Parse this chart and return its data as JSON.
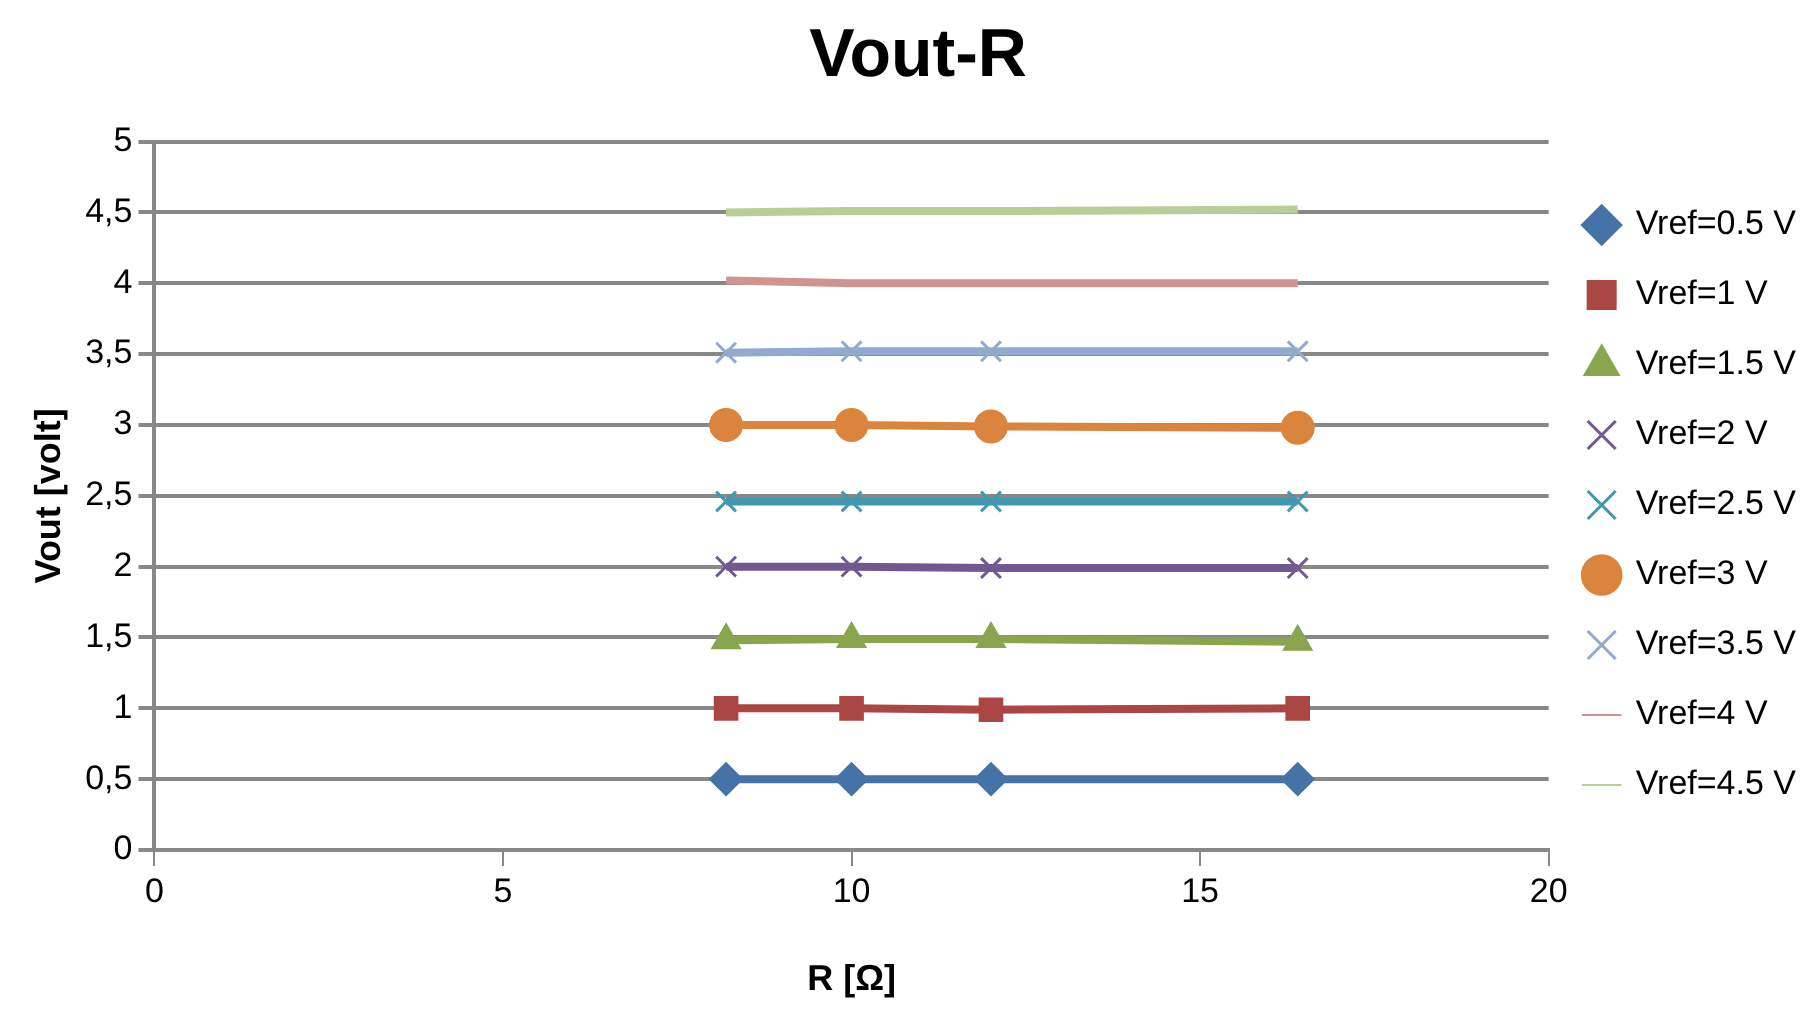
{
  "chart_data": {
    "type": "line",
    "title": "Vout-R",
    "xlabel": "R [Ω]",
    "ylabel": "Vout [volt]",
    "x": [
      8.2,
      10,
      12,
      16.4
    ],
    "xlim": [
      0,
      20
    ],
    "xticks": [
      0,
      5,
      10,
      15,
      20
    ],
    "ylim": [
      0,
      5
    ],
    "yticks": [
      0,
      {
        "value": 0.5,
        "label": "0,5"
      },
      1,
      {
        "value": 1.5,
        "label": "1,5"
      },
      2,
      {
        "value": 2.5,
        "label": "2,5"
      },
      3,
      {
        "value": 3.5,
        "label": "3,5"
      },
      4,
      {
        "value": 4.5,
        "label": "4,5"
      },
      5
    ],
    "grid": "y",
    "legend": "right",
    "series": [
      {
        "name": "Vref=0.5 V",
        "color": "#4572a7",
        "marker": "diamond",
        "values": [
          0.5,
          0.5,
          0.5,
          0.5
        ]
      },
      {
        "name": "Vref=1 V",
        "color": "#aa4643",
        "marker": "square",
        "values": [
          1,
          1,
          0.99,
          1
        ]
      },
      {
        "name": "Vref=1.5 V",
        "color": "#89a54e",
        "marker": "triangle",
        "values": [
          1.48,
          1.49,
          1.49,
          1.47
        ]
      },
      {
        "name": "Vref=2 V",
        "color": "#71588f",
        "marker": "cross",
        "values": [
          2,
          2,
          1.99,
          1.99
        ]
      },
      {
        "name": "Vref=2.5 V",
        "color": "#4198af",
        "marker": "cross",
        "values": [
          2.46,
          2.46,
          2.46,
          2.46
        ]
      },
      {
        "name": "Vref=3 V",
        "color": "#db843d",
        "marker": "circle",
        "values": [
          3,
          3,
          2.99,
          2.98
        ]
      },
      {
        "name": "Vref=3.5 V",
        "color": "#93a9cf",
        "marker": "cross",
        "values": [
          3.51,
          3.52,
          3.52,
          3.52
        ]
      },
      {
        "name": "Vref=4 V",
        "color": "#d19392",
        "marker": "none",
        "values": [
          4.02,
          4,
          4,
          4
        ]
      },
      {
        "name": "Vref=4.5 V",
        "color": "#b9cd96",
        "marker": "none",
        "values": [
          4.5,
          4.51,
          4.51,
          4.52
        ]
      }
    ]
  }
}
